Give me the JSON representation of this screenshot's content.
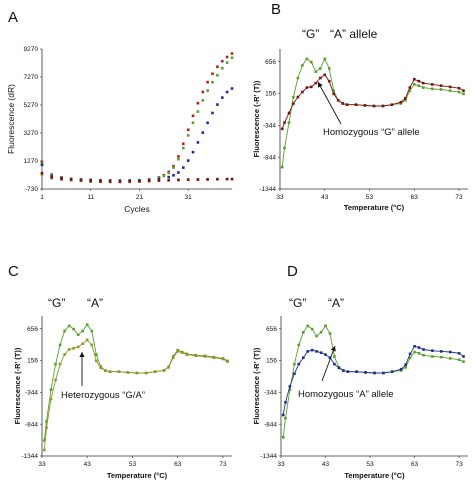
{
  "colors": {
    "red": "#b3201b",
    "dark_red": "#7a1410",
    "green": "#5aa02c",
    "olive": "#8a9a2a",
    "blue": "#1f2f8c",
    "axis": "#333333"
  },
  "chart_data": [
    {
      "panel": "A",
      "type": "scatter",
      "xlabel": "Cycles",
      "ylabel": "Fluorescence (dR)",
      "xlim": [
        1,
        40
      ],
      "ylim": [
        -730,
        9270
      ],
      "xticks": [
        "1",
        "11",
        "21",
        "31"
      ],
      "yticks": [
        "9270",
        "7270",
        "5270",
        "3270",
        "1270",
        "-730"
      ],
      "series": [
        {
          "color": "red",
          "x": [
            1,
            3,
            5,
            7,
            9,
            11,
            13,
            15,
            17,
            19,
            21,
            23,
            25,
            26,
            27,
            28,
            29,
            30,
            31,
            32,
            33,
            34,
            35,
            36,
            37,
            38,
            39,
            40
          ],
          "y": [
            1200,
            300,
            100,
            0,
            -50,
            -80,
            -100,
            -120,
            -130,
            -120,
            -100,
            -50,
            100,
            250,
            500,
            900,
            1600,
            2500,
            3500,
            4500,
            5400,
            6200,
            6900,
            7500,
            8000,
            8400,
            8700,
            8950
          ]
        },
        {
          "color": "green",
          "x": [
            1,
            3,
            5,
            7,
            9,
            11,
            13,
            15,
            17,
            19,
            21,
            23,
            25,
            26,
            27,
            28,
            29,
            30,
            31,
            32,
            33,
            34,
            35,
            36,
            37,
            38,
            39,
            40
          ],
          "y": [
            1100,
            250,
            80,
            -20,
            -60,
            -90,
            -110,
            -130,
            -140,
            -130,
            -110,
            -60,
            80,
            200,
            420,
            800,
            1400,
            2200,
            3100,
            4000,
            4800,
            5600,
            6300,
            6900,
            7400,
            7900,
            8300,
            8650
          ]
        },
        {
          "color": "blue",
          "x": [
            1,
            3,
            5,
            7,
            9,
            11,
            13,
            15,
            17,
            19,
            21,
            23,
            25,
            27,
            28,
            29,
            30,
            31,
            32,
            33,
            34,
            35,
            36,
            37,
            38,
            39,
            40
          ],
          "y": [
            1000,
            200,
            50,
            -30,
            -70,
            -100,
            -120,
            -140,
            -150,
            -140,
            -120,
            -80,
            0,
            120,
            250,
            450,
            800,
            1300,
            1900,
            2600,
            3300,
            4000,
            4700,
            5300,
            5800,
            6200,
            6450
          ]
        },
        {
          "color": "olive",
          "x": [
            1,
            3,
            5,
            7,
            9,
            11,
            13,
            15,
            17,
            19,
            21,
            23,
            25,
            27,
            29,
            31,
            33,
            35,
            37,
            39,
            40
          ],
          "y": [
            300,
            50,
            -50,
            -100,
            -150,
            -200,
            -220,
            -230,
            -230,
            -220,
            -200,
            -170,
            -140,
            -110,
            -90,
            -70,
            -60,
            -50,
            -40,
            -30,
            -30
          ]
        },
        {
          "color": "dark_red",
          "x": [
            1,
            3,
            5,
            7,
            9,
            11,
            13,
            15,
            17,
            19,
            21,
            23,
            25,
            27,
            29,
            31,
            33,
            35,
            37,
            39,
            40
          ],
          "y": [
            400,
            100,
            0,
            -60,
            -110,
            -160,
            -190,
            -200,
            -200,
            -190,
            -170,
            -150,
            -120,
            -100,
            -80,
            -60,
            -50,
            -40,
            -30,
            -20,
            -20
          ]
        }
      ]
    },
    {
      "panel": "B",
      "type": "line",
      "xlabel": "Temperature (°C)",
      "ylabel": "Fluorescence (-R’ (T))",
      "xlim": [
        33,
        75
      ],
      "ylim": [
        -1344,
        856
      ],
      "xticks": [
        "33",
        "43",
        "53",
        "63",
        "73"
      ],
      "yticks": [
        "656",
        "156",
        "-344",
        "-844",
        "-1344"
      ],
      "labels": {
        "g": "“G”",
        "a": "“A” allele",
        "note": "Homozygous “G” allele"
      },
      "series": [
        {
          "color": "green",
          "x": [
            33.5,
            34,
            35,
            36,
            37,
            38,
            39,
            40,
            41,
            42,
            43,
            44,
            45,
            46,
            47,
            48,
            50,
            52,
            54,
            56,
            58,
            60,
            61,
            62,
            63,
            64,
            65,
            67,
            69,
            71,
            73,
            74
          ],
          "y": [
            -1000,
            -700,
            -300,
            100,
            400,
            600,
            700,
            650,
            500,
            550,
            700,
            550,
            200,
            50,
            0,
            -20,
            -20,
            -30,
            -40,
            -40,
            -20,
            0,
            50,
            200,
            300,
            280,
            250,
            230,
            220,
            200,
            180,
            150
          ]
        },
        {
          "color": "dark_red",
          "x": [
            33.5,
            34,
            35,
            36,
            37,
            38,
            39,
            40,
            41,
            42,
            43,
            44,
            45,
            46,
            47,
            48,
            50,
            52,
            54,
            56,
            58,
            60,
            61,
            62,
            63,
            64,
            65,
            67,
            69,
            71,
            73,
            74
          ],
          "y": [
            -400,
            -300,
            -150,
            0,
            100,
            180,
            250,
            260,
            320,
            400,
            450,
            350,
            150,
            50,
            0,
            -20,
            -20,
            -30,
            -40,
            -40,
            -20,
            20,
            80,
            250,
            380,
            350,
            320,
            300,
            280,
            260,
            240,
            200
          ]
        }
      ]
    },
    {
      "panel": "C",
      "type": "line",
      "xlabel": "Temperature (°C)",
      "ylabel": "Fluorescence (-R’ (T))",
      "xlim": [
        33,
        75
      ],
      "ylim": [
        -1344,
        856
      ],
      "xticks": [
        "33",
        "43",
        "53",
        "63",
        "73"
      ],
      "yticks": [
        "656",
        "156",
        "-344",
        "-844",
        "-1344"
      ],
      "labels": {
        "g": "“G”",
        "a": "“A”",
        "note": "Heterozygous “G/A”"
      },
      "series": [
        {
          "color": "green",
          "x": [
            33.5,
            34,
            35,
            36,
            37,
            38,
            39,
            40,
            41,
            42,
            43,
            44,
            45,
            46,
            47,
            48,
            50,
            52,
            54,
            56,
            58,
            60,
            61,
            62,
            63,
            64,
            65,
            67,
            69,
            71,
            73,
            74
          ],
          "y": [
            -1100,
            -800,
            -300,
            100,
            400,
            620,
            700,
            650,
            560,
            620,
            720,
            620,
            250,
            60,
            0,
            -20,
            -20,
            -30,
            -40,
            -40,
            -20,
            0,
            60,
            220,
            320,
            290,
            260,
            240,
            230,
            210,
            190,
            150
          ]
        },
        {
          "color": "olive",
          "x": [
            33.5,
            34,
            35,
            36,
            37,
            38,
            39,
            40,
            41,
            42,
            43,
            44,
            45,
            46,
            47,
            48,
            50,
            52,
            54,
            56,
            58,
            60,
            61,
            62,
            63,
            64,
            65,
            67,
            69,
            71,
            73,
            74
          ],
          "y": [
            -1250,
            -900,
            -450,
            -150,
            100,
            250,
            330,
            350,
            370,
            420,
            480,
            400,
            150,
            40,
            0,
            -20,
            -20,
            -30,
            -40,
            -40,
            -20,
            0,
            50,
            200,
            300,
            280,
            250,
            230,
            220,
            200,
            180,
            140
          ]
        }
      ]
    },
    {
      "panel": "D",
      "type": "line",
      "xlabel": "Temperature (°C)",
      "ylabel": "Fluorescence (-R’ (T))",
      "xlim": [
        33,
        75
      ],
      "ylim": [
        -1344,
        856
      ],
      "xticks": [
        "33",
        "43",
        "53",
        "63",
        "73"
      ],
      "yticks": [
        "656",
        "156",
        "-344",
        "-844",
        "-1344"
      ],
      "labels": {
        "g": "“G”",
        "a": "“A”",
        "note": "Homozygous “A” allele"
      },
      "series": [
        {
          "color": "green",
          "x": [
            33.5,
            34,
            35,
            36,
            37,
            38,
            39,
            40,
            41,
            42,
            43,
            44,
            45,
            46,
            47,
            48,
            50,
            52,
            54,
            56,
            58,
            60,
            61,
            62,
            63,
            64,
            65,
            67,
            69,
            71,
            73,
            74
          ],
          "y": [
            -1050,
            -750,
            -300,
            100,
            400,
            600,
            700,
            650,
            540,
            600,
            700,
            580,
            220,
            50,
            0,
            -20,
            -20,
            -30,
            -40,
            -40,
            -20,
            0,
            50,
            200,
            290,
            270,
            240,
            220,
            210,
            190,
            170,
            140
          ]
        },
        {
          "color": "blue",
          "x": [
            33.5,
            34,
            35,
            36,
            37,
            38,
            39,
            40,
            41,
            42,
            43,
            44,
            45,
            46,
            47,
            48,
            50,
            52,
            54,
            56,
            58,
            60,
            61,
            62,
            63,
            64,
            65,
            67,
            69,
            71,
            73,
            74
          ],
          "y": [
            -700,
            -500,
            -250,
            -50,
            100,
            200,
            300,
            320,
            300,
            280,
            250,
            200,
            100,
            40,
            0,
            -20,
            -20,
            -30,
            -40,
            -40,
            -20,
            20,
            90,
            260,
            380,
            360,
            330,
            310,
            300,
            290,
            270,
            220
          ]
        }
      ]
    }
  ]
}
